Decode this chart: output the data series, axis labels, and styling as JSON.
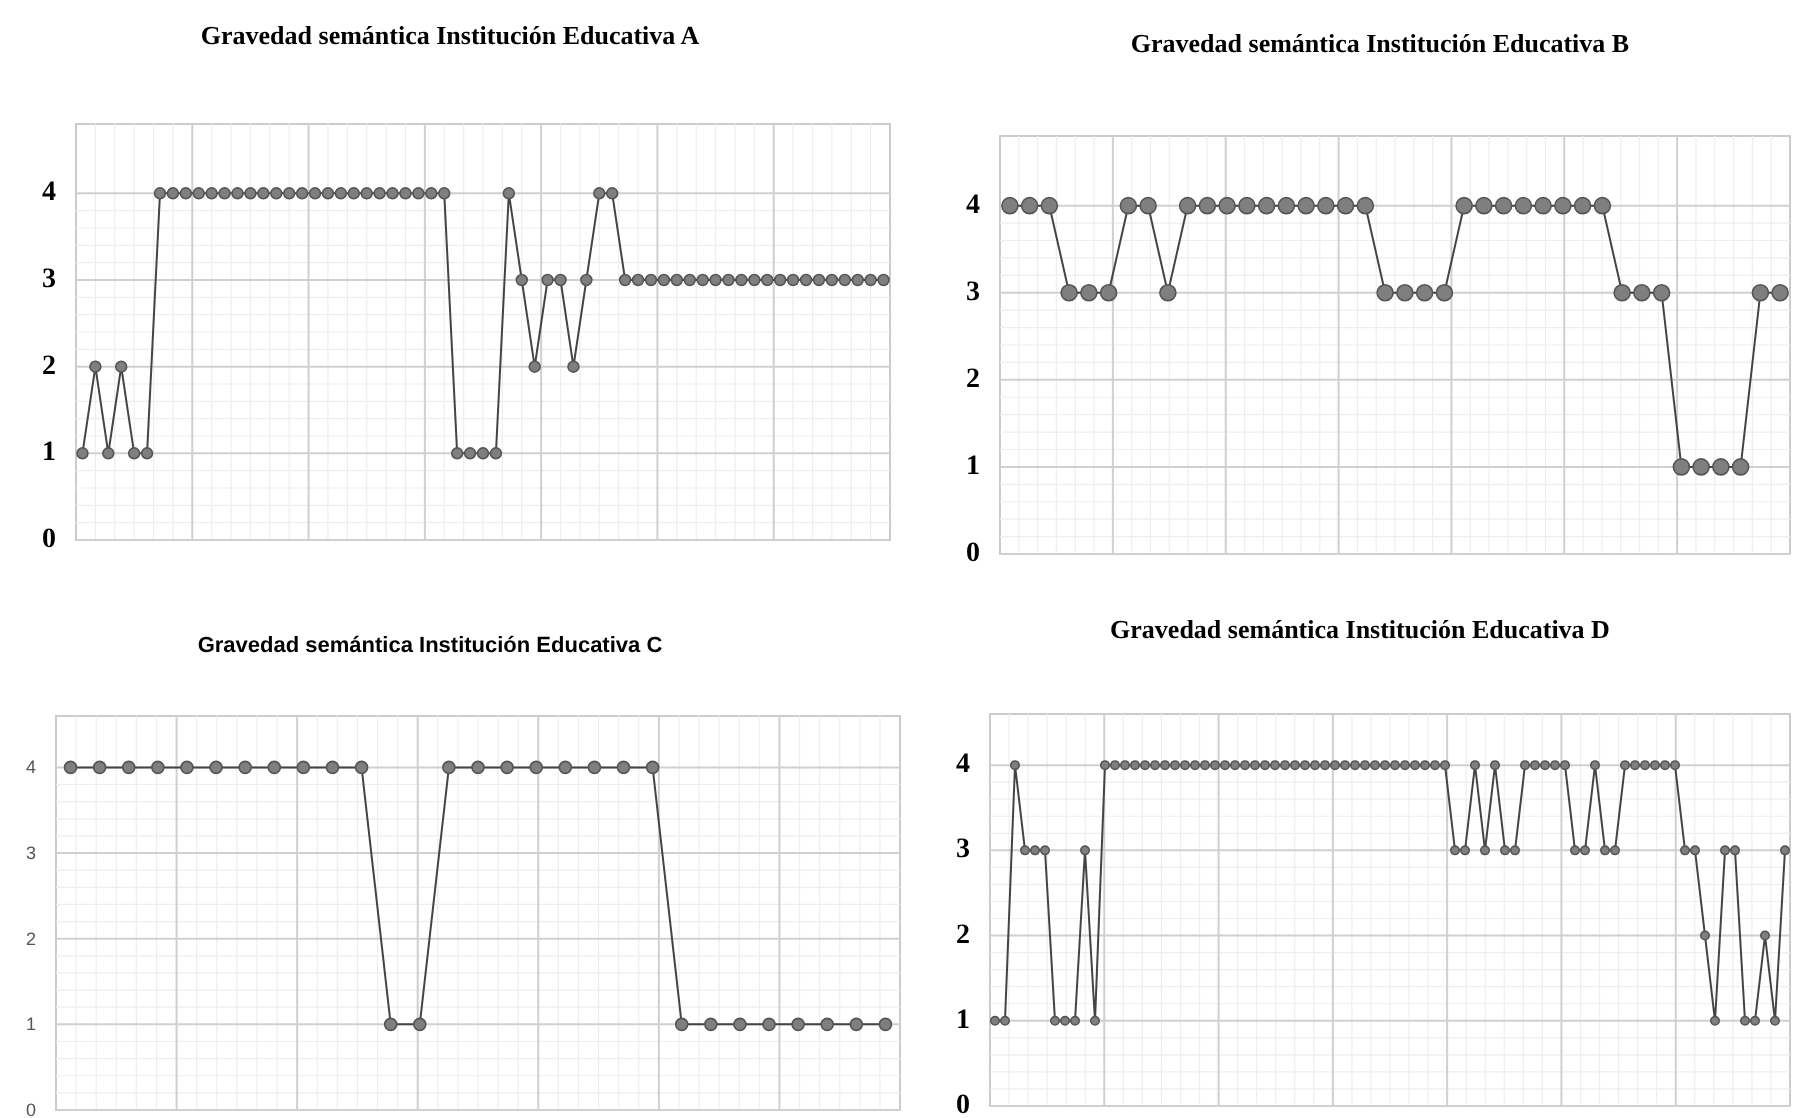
{
  "chart_data": [
    {
      "type": "line",
      "title": "Gravedad semántica Institución Educativa A",
      "categories": [
        null,
        null,
        null,
        null,
        null,
        null,
        null,
        null,
        null,
        null,
        null,
        null,
        null,
        null,
        null,
        null,
        null,
        null,
        null,
        null,
        null,
        null,
        null,
        null,
        null,
        null,
        null,
        null,
        null,
        null,
        null,
        null,
        null,
        null,
        null,
        null,
        null,
        null,
        null,
        null,
        null,
        null,
        null,
        null,
        null,
        null,
        null,
        null,
        null,
        null,
        null,
        null,
        null,
        null,
        null,
        null,
        null,
        null,
        null,
        null,
        null,
        null,
        null
      ],
      "series": [
        {
          "color": "#7f7f7f",
          "values": [
            1,
            2,
            1,
            2,
            1,
            1,
            4,
            4,
            4,
            4,
            4,
            4,
            4,
            4,
            4,
            4,
            4,
            4,
            4,
            4,
            4,
            4,
            4,
            4,
            4,
            4,
            4,
            4,
            4,
            1,
            1,
            1,
            1,
            4,
            3,
            2,
            3,
            3,
            2,
            3,
            4,
            4,
            3,
            3,
            3,
            3,
            3,
            3,
            3,
            3,
            3,
            3,
            3,
            3,
            3,
            3,
            3,
            3,
            3,
            3,
            3,
            3,
            3
          ]
        }
      ],
      "ylim": [
        0,
        4.8
      ],
      "yticks": [
        0,
        1,
        2,
        3,
        4
      ],
      "grid": true,
      "tick_labels": "y",
      "marker": "circle",
      "line_style": "solid"
    },
    {
      "type": "line",
      "title": "Gravedad semántica Institución Educativa B",
      "categories": [
        null,
        null,
        null,
        null,
        null,
        null,
        null,
        null,
        null,
        null,
        null,
        null,
        null,
        null,
        null,
        null,
        null,
        null,
        null,
        null,
        null,
        null,
        null,
        null,
        null,
        null,
        null,
        null,
        null,
        null,
        null,
        null,
        null,
        null,
        null,
        null,
        null,
        null,
        null,
        null
      ],
      "series": [
        {
          "color": "#7f7f7f",
          "values": [
            4,
            4,
            4,
            3,
            3,
            3,
            4,
            4,
            3,
            4,
            4,
            4,
            4,
            4,
            4,
            4,
            4,
            4,
            4,
            3,
            3,
            3,
            3,
            4,
            4,
            4,
            4,
            4,
            4,
            4,
            4,
            3,
            3,
            3,
            1,
            1,
            1,
            1,
            3,
            3
          ]
        }
      ],
      "ylim": [
        0,
        4.8
      ],
      "yticks": [
        0,
        1,
        2,
        3,
        4
      ],
      "grid": true,
      "tick_labels": "y",
      "marker": "circle",
      "line_style": "solid"
    },
    {
      "type": "line",
      "title": "Gravedad semántica Institución Educativa C",
      "categories": [
        null,
        null,
        null,
        null,
        null,
        null,
        null,
        null,
        null,
        null,
        null,
        null,
        null,
        null,
        null,
        null,
        null,
        null,
        null,
        null,
        null,
        null,
        null,
        null,
        null,
        null,
        null,
        null,
        null
      ],
      "series": [
        {
          "color": "#7f7f7f",
          "values": [
            4,
            4,
            4,
            4,
            4,
            4,
            4,
            4,
            4,
            4,
            4,
            1,
            1,
            4,
            4,
            4,
            4,
            4,
            4,
            4,
            4,
            1,
            1,
            1,
            1,
            1,
            1,
            1,
            1
          ]
        }
      ],
      "ylim": [
        0,
        4.6
      ],
      "yticks": [
        0,
        1,
        2,
        3,
        4
      ],
      "grid": true,
      "tick_labels": "y",
      "marker": "circle",
      "line_style": "solid"
    },
    {
      "type": "line",
      "title": "Gravedad semántica Institución Educativa D",
      "categories": [
        null,
        null,
        null,
        null,
        null,
        null,
        null,
        null,
        null,
        null,
        null,
        null,
        null,
        null,
        null,
        null,
        null,
        null,
        null,
        null,
        null,
        null,
        null,
        null,
        null,
        null,
        null,
        null,
        null,
        null,
        null,
        null,
        null,
        null,
        null,
        null,
        null,
        null,
        null,
        null,
        null,
        null,
        null,
        null,
        null,
        null,
        null,
        null,
        null,
        null,
        null,
        null,
        null,
        null,
        null,
        null,
        null,
        null,
        null,
        null,
        null,
        null,
        null,
        null,
        null,
        null,
        null,
        null,
        null,
        null,
        null,
        null,
        null,
        null,
        null,
        null,
        null,
        null,
        null,
        null
      ],
      "series": [
        {
          "color": "#7f7f7f",
          "values": [
            1,
            1,
            4,
            3,
            3,
            3,
            1,
            1,
            1,
            3,
            1,
            4,
            4,
            4,
            4,
            4,
            4,
            4,
            4,
            4,
            4,
            4,
            4,
            4,
            4,
            4,
            4,
            4,
            4,
            4,
            4,
            4,
            4,
            4,
            4,
            4,
            4,
            4,
            4,
            4,
            4,
            4,
            4,
            4,
            4,
            4,
            3,
            3,
            4,
            3,
            4,
            3,
            3,
            4,
            4,
            4,
            4,
            4,
            3,
            3,
            4,
            3,
            3,
            4,
            4,
            4,
            4,
            4,
            4,
            3,
            3,
            2,
            1,
            3,
            3,
            1,
            1,
            2,
            1,
            3
          ]
        }
      ],
      "ylim": [
        0,
        4.6
      ],
      "yticks": [
        0,
        1,
        2,
        3,
        4
      ],
      "grid": true,
      "tick_labels": "y",
      "marker": "circle",
      "line_style": "solid"
    }
  ]
}
